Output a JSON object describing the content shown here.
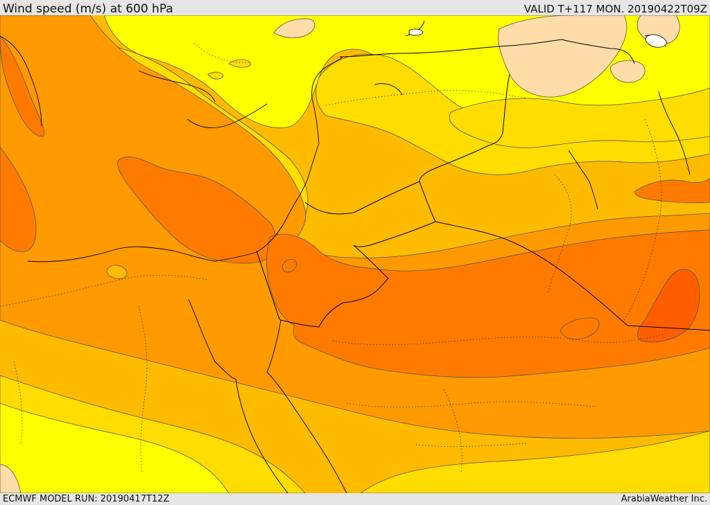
{
  "header": {
    "title": "Wind speed (m/s) at 600 hPa",
    "valid": "VALID T+117 MON. 20190422T09Z"
  },
  "footer": {
    "model_run": "ECMWF MODEL RUN: 20190417T12Z",
    "credit": "ArabiaWeather Inc."
  },
  "map": {
    "product": "wind-speed-shaded-contours",
    "level_hpa": 600,
    "units": "m/s",
    "palette": {
      "lightest": "#ffdca8",
      "yellow": "#ffff00",
      "gold": "#ffdd00",
      "amber": "#ffbb00",
      "orange": "#ff9a00",
      "dark_orange": "#ff7b00",
      "red_orange": "#ff5e00"
    },
    "contour_color": "#555555",
    "border_color": "#000000",
    "coastline_color": "#000000",
    "province_line_style": "dotted"
  }
}
